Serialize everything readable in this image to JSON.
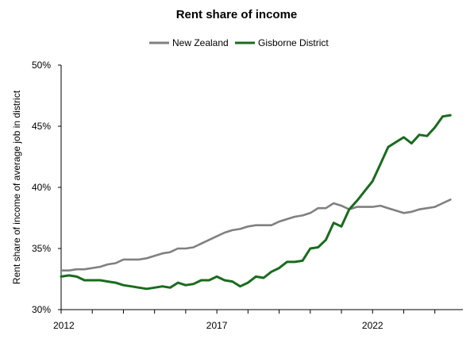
{
  "chart_data": {
    "type": "line",
    "title": "Rent share of income",
    "xlabel": "",
    "ylabel": "Rent share of income of average job in district",
    "y_ticks": [
      "30%",
      "35%",
      "40%",
      "45%",
      "50%"
    ],
    "y_tick_values": [
      30,
      35,
      40,
      45,
      50
    ],
    "x_ticks": [
      "2012",
      "2017",
      "2022"
    ],
    "x_tick_values": [
      2012,
      2017,
      2022
    ],
    "ylim": [
      30,
      50
    ],
    "xlim": [
      2012,
      2024.9
    ],
    "grid": false,
    "legend_position": "top-center",
    "series": [
      {
        "name": "New Zealand",
        "color": "#808080",
        "x": [
          2012.0,
          2012.25,
          2012.5,
          2012.75,
          2013.0,
          2013.25,
          2013.5,
          2013.75,
          2014.0,
          2014.25,
          2014.5,
          2014.75,
          2015.0,
          2015.25,
          2015.5,
          2015.75,
          2016.0,
          2016.25,
          2016.5,
          2016.75,
          2017.0,
          2017.25,
          2017.5,
          2017.75,
          2018.0,
          2018.25,
          2018.5,
          2018.75,
          2019.0,
          2019.25,
          2019.5,
          2019.75,
          2020.0,
          2020.25,
          2020.5,
          2020.75,
          2021.0,
          2021.25,
          2021.5,
          2021.75,
          2022.0,
          2022.25,
          2022.5,
          2022.75,
          2023.0,
          2023.25,
          2023.5,
          2023.75,
          2024.0,
          2024.25,
          2024.5
        ],
        "values": [
          33.2,
          33.2,
          33.3,
          33.3,
          33.4,
          33.5,
          33.7,
          33.8,
          34.1,
          34.1,
          34.1,
          34.2,
          34.4,
          34.6,
          34.7,
          35.0,
          35.0,
          35.1,
          35.4,
          35.7,
          36.0,
          36.3,
          36.5,
          36.6,
          36.8,
          36.9,
          36.9,
          36.9,
          37.2,
          37.4,
          37.6,
          37.7,
          37.9,
          38.3,
          38.3,
          38.7,
          38.5,
          38.2,
          38.4,
          38.4,
          38.4,
          38.5,
          38.3,
          38.1,
          37.9,
          38.0,
          38.2,
          38.3,
          38.4,
          38.7,
          39.0
        ]
      },
      {
        "name": "Gisborne District",
        "color": "#1a6b1e",
        "x": [
          2012.0,
          2012.25,
          2012.5,
          2012.75,
          2013.0,
          2013.25,
          2013.5,
          2013.75,
          2014.0,
          2014.25,
          2014.5,
          2014.75,
          2015.0,
          2015.25,
          2015.5,
          2015.75,
          2016.0,
          2016.25,
          2016.5,
          2016.75,
          2017.0,
          2017.25,
          2017.5,
          2017.75,
          2018.0,
          2018.25,
          2018.5,
          2018.75,
          2019.0,
          2019.25,
          2019.5,
          2019.75,
          2020.0,
          2020.25,
          2020.5,
          2020.75,
          2021.0,
          2021.25,
          2021.5,
          2021.75,
          2022.0,
          2022.25,
          2022.5,
          2022.75,
          2023.0,
          2023.25,
          2023.5,
          2023.75,
          2024.0,
          2024.25,
          2024.5
        ],
        "values": [
          32.7,
          32.8,
          32.7,
          32.4,
          32.4,
          32.4,
          32.3,
          32.2,
          32.0,
          31.9,
          31.8,
          31.7,
          31.8,
          31.9,
          31.8,
          32.2,
          32.0,
          32.1,
          32.4,
          32.4,
          32.7,
          32.4,
          32.3,
          31.9,
          32.2,
          32.7,
          32.6,
          33.1,
          33.4,
          33.9,
          33.9,
          34.0,
          35.0,
          35.1,
          35.7,
          37.1,
          36.8,
          38.2,
          38.9,
          39.7,
          40.5,
          41.9,
          43.3,
          43.7,
          44.1,
          43.6,
          44.3,
          44.2,
          44.9,
          45.8,
          45.9
        ]
      }
    ]
  }
}
